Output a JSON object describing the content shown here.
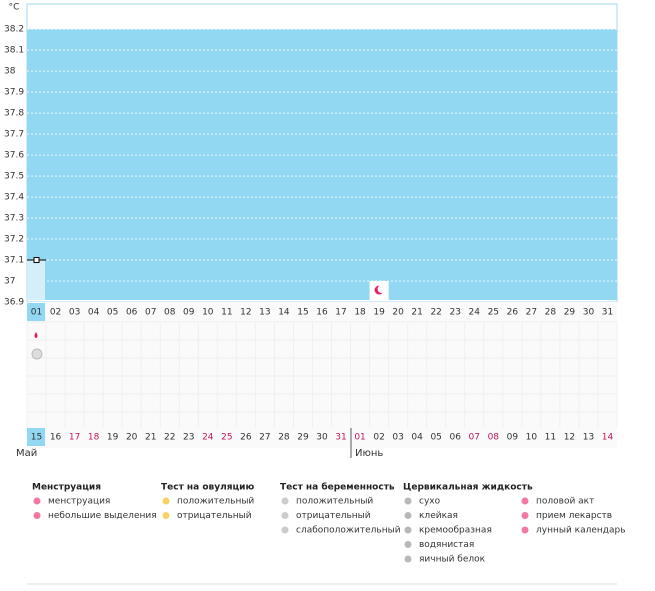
{
  "chart_data": {
    "type": "line",
    "y_unit": "°C",
    "categories": [
      "01",
      "02",
      "03",
      "04",
      "05",
      "06",
      "07",
      "08",
      "09",
      "10",
      "11",
      "12",
      "13",
      "14",
      "15",
      "16",
      "17",
      "18",
      "19",
      "20",
      "21",
      "22",
      "23",
      "24",
      "25",
      "26",
      "27",
      "28",
      "29",
      "30",
      "31"
    ],
    "series": [
      {
        "color": "#000000",
        "values": [
          37.1,
          null,
          null,
          null,
          null,
          null,
          null,
          null,
          null,
          null,
          null,
          null,
          null,
          null,
          null,
          null,
          null,
          null,
          null,
          null,
          null,
          null,
          null,
          null,
          null,
          null,
          null,
          null,
          null,
          null,
          null
        ]
      }
    ],
    "ylim": [
      36.9,
      38.32
    ],
    "yticks": [
      36.9,
      37,
      37.1,
      37.2,
      37.3,
      37.4,
      37.5,
      37.6,
      37.7,
      37.8,
      37.9,
      38,
      38.1,
      38.2
    ],
    "grid": true,
    "dates": [
      "15",
      "16",
      "17",
      "18",
      "19",
      "20",
      "21",
      "22",
      "23",
      "24",
      "25",
      "26",
      "27",
      "28",
      "29",
      "30",
      "31",
      "01",
      "02",
      "03",
      "04",
      "05",
      "06",
      "07",
      "08",
      "09",
      "10",
      "11",
      "12",
      "13",
      "14"
    ],
    "date_colors": [
      "#333",
      "#333",
      "#c2185b",
      "#c2185b",
      "#333",
      "#333",
      "#333",
      "#333",
      "#333",
      "#c2185b",
      "#c2185b",
      "#333",
      "#333",
      "#333",
      "#333",
      "#333",
      "#c2185b",
      "#c2185b",
      "#333",
      "#333",
      "#333",
      "#333",
      "#333",
      "#c2185b",
      "#c2185b",
      "#333",
      "#333",
      "#333",
      "#333",
      "#333",
      "#c2185b"
    ],
    "months": [
      "Май",
      "Июнь"
    ],
    "legend": [
      {
        "title": "Менструация",
        "items": [
          "менструация",
          "небольшие выделения"
        ]
      },
      {
        "title": "Тест на овуляцию",
        "items": [
          "положительный",
          "отрицательный"
        ]
      },
      {
        "title": "Тест на беременность",
        "items": [
          "положительный",
          "отрицательный",
          "слабоположительный"
        ]
      },
      {
        "title": "Цервикальная жидкость",
        "items": [
          "сухо",
          "клейкая",
          "кремообразная",
          "водянистая",
          "яичный белок"
        ]
      },
      {
        "items": [
          "половой акт",
          "прием лекарств",
          "лунный календарь"
        ]
      }
    ]
  }
}
